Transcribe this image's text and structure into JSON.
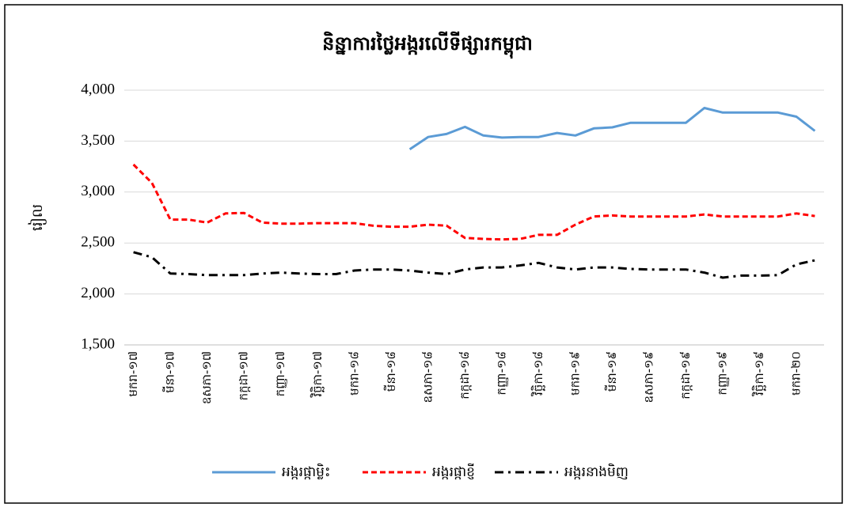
{
  "chart_data": {
    "type": "line",
    "title": "និន្នាការថ្លៃអង្ករលើទីផ្សារកម្ពុជា",
    "ylabel": "រៀល",
    "categories": [
      "មករា-១៧",
      null,
      "មីនា-១៧",
      null,
      "ឧសភា-១៧",
      null,
      "កក្កដា-១៧",
      null,
      "កញ្ញា-១៧",
      null,
      "វិច្ឆិកា-១៧",
      null,
      "មករា-១៨",
      null,
      "មីនា-១៨",
      null,
      "ឧសភា-១៨",
      null,
      "កក្កដា-១៨",
      null,
      "កញ្ញា-១៨",
      null,
      "វិច្ឆិកា-១៨",
      null,
      "មករា-១៩",
      null,
      "មីនា-១៩",
      null,
      "ឧសភា-១៩",
      null,
      "កក្កដា-១៩",
      null,
      "កញ្ញា-១៩",
      null,
      "វិច្ឆិកា-១៩",
      null,
      "មករា-២០",
      null
    ],
    "series": [
      {
        "name": "អង្ករផ្កាម្លិះ",
        "color": "#5b9bd5",
        "dash": "solid",
        "values": [
          null,
          null,
          null,
          null,
          null,
          null,
          null,
          null,
          null,
          null,
          null,
          null,
          null,
          null,
          null,
          3420,
          3540,
          3570,
          3640,
          3555,
          3535,
          3540,
          3540,
          3580,
          3555,
          3625,
          3635,
          3680,
          3680,
          3680,
          3680,
          3825,
          3780,
          3780,
          3780,
          3780,
          3740,
          3600
        ]
      },
      {
        "name": "អង្ករផ្កាខ្ញី",
        "color": "#ff0000",
        "dash": "dashed",
        "values": [
          3270,
          3090,
          2730,
          2730,
          2700,
          2790,
          2795,
          2700,
          2690,
          2690,
          2695,
          2695,
          2695,
          2670,
          2660,
          2660,
          2680,
          2670,
          2550,
          2540,
          2535,
          2540,
          2580,
          2580,
          2680,
          2760,
          2770,
          2760,
          2760,
          2760,
          2760,
          2780,
          2760,
          2760,
          2760,
          2760,
          2790,
          2765
        ]
      },
      {
        "name": "អង្ករនាងមិញ",
        "color": "#000000",
        "dash": "dashdot",
        "values": [
          2410,
          2360,
          2200,
          2195,
          2185,
          2185,
          2185,
          2200,
          2210,
          2200,
          2195,
          2195,
          2230,
          2240,
          2240,
          2230,
          2210,
          2195,
          2240,
          2260,
          2260,
          2280,
          2305,
          2260,
          2240,
          2260,
          2260,
          2245,
          2240,
          2240,
          2240,
          2210,
          2160,
          2180,
          2180,
          2185,
          2290,
          2330
        ]
      }
    ],
    "ylim": [
      1500,
      4000
    ],
    "yticks": [
      {
        "value": 1500,
        "label": "1,500"
      },
      {
        "value": 2000,
        "label": "2,000"
      },
      {
        "value": 2500,
        "label": "2,500"
      },
      {
        "value": 3000,
        "label": "3,000"
      },
      {
        "value": 3500,
        "label": "3,500"
      },
      {
        "value": 4000,
        "label": "4,000"
      }
    ],
    "grid": true,
    "legend": "bottom"
  }
}
